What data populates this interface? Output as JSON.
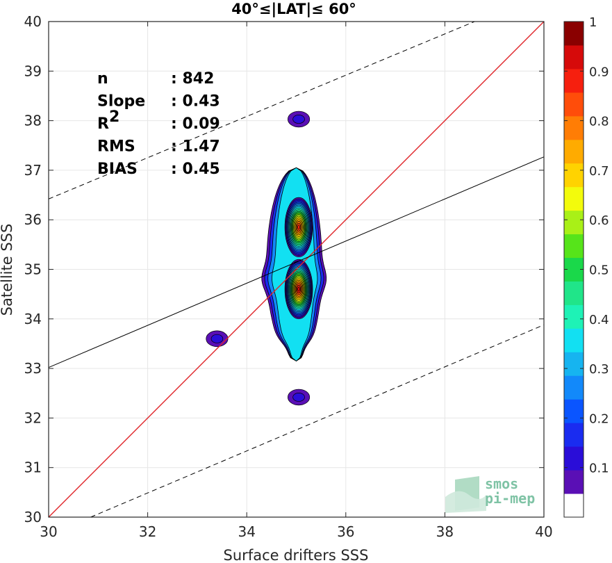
{
  "chart_data": {
    "type": "heatmap",
    "title": "40°≤|LAT|≤ 60°",
    "xlabel": "Surface drifters SSS",
    "ylabel": "Satellite SSS",
    "xlim": [
      30,
      40
    ],
    "ylim": [
      30,
      40
    ],
    "xticks": [
      30,
      32,
      34,
      36,
      38,
      40
    ],
    "yticks": [
      30,
      31,
      32,
      33,
      34,
      35,
      36,
      37,
      38,
      39,
      40
    ],
    "grid": true,
    "stats": [
      {
        "key": "n",
        "sep": ":",
        "value": "842"
      },
      {
        "key": "Slope",
        "sep": ":",
        "value": "0.43"
      },
      {
        "key": "R",
        "sup": "2",
        "sep": ":",
        "value": "0.09"
      },
      {
        "key": "RMS",
        "sep": ":",
        "value": "1.47"
      },
      {
        "key": "BIAS",
        "sep": ":",
        "value": "0.45"
      }
    ],
    "lines": [
      {
        "kind": "identity",
        "color": "#e0262b",
        "points": [
          [
            30,
            30
          ],
          [
            40,
            40
          ]
        ]
      },
      {
        "kind": "regression",
        "color": "#000000",
        "slope": 0.43,
        "points": [
          [
            30,
            33.02
          ],
          [
            40,
            37.27
          ]
        ]
      },
      {
        "kind": "upper-bound",
        "color": "#000000",
        "dashed": true,
        "points": [
          [
            30,
            36.42
          ],
          [
            38.6,
            40
          ]
        ]
      },
      {
        "kind": "lower-bound",
        "color": "#000000",
        "dashed": true,
        "points": [
          [
            30.85,
            30
          ],
          [
            40,
            33.88
          ]
        ]
      }
    ],
    "density_peaks": [
      {
        "x": 35.05,
        "y": 34.6,
        "peak": 1.0
      },
      {
        "x": 35.05,
        "y": 35.85,
        "peak": 0.95
      },
      {
        "x": 35.05,
        "y": 38.03,
        "peak": 0.12
      },
      {
        "x": 35.05,
        "y": 32.42,
        "peak": 0.12
      },
      {
        "x": 33.4,
        "y": 33.6,
        "peak": 0.08
      }
    ],
    "colorbar": {
      "range": [
        0,
        1
      ],
      "ticks": [
        0.1,
        0.2,
        0.3,
        0.4,
        0.5,
        0.6,
        0.7,
        0.8,
        0.9,
        1
      ],
      "tick_labels": [
        "0.1",
        "0.2",
        "0.3",
        "0.4",
        "0.5",
        "0.6",
        "0.7",
        "0.8",
        "0.9",
        "1"
      ],
      "colors": [
        "#ffffff",
        "#5a0fb5",
        "#2a0dd8",
        "#1a2cf0",
        "#0a55ff",
        "#1289fa",
        "#16b4f0",
        "#12e0f2",
        "#1ef2b6",
        "#20e589",
        "#1ad84a",
        "#56e41a",
        "#a9f017",
        "#f3fb0c",
        "#ffd300",
        "#ffab00",
        "#ff7d05",
        "#ff4d0a",
        "#f61f0e",
        "#d60a0a",
        "#8a0000"
      ]
    }
  },
  "logo": {
    "line1": "smos",
    "line2": "pi-mep"
  }
}
